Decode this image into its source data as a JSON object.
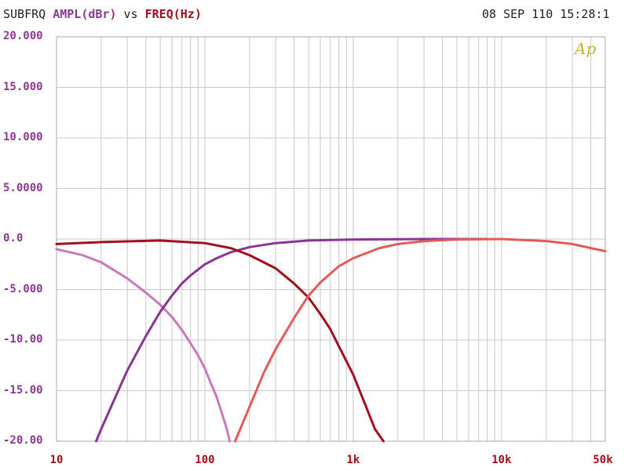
{
  "header": {
    "left_label": "SUBFRQ",
    "ylabel": "AMPL(dBr)",
    "vs": "vs",
    "xlabel": "FREQ(Hz)",
    "timestamp": "08 SEP 110 15:28:1"
  },
  "logo_text": "Ap",
  "colors": {
    "grid": "#c8c8c8",
    "ytick": "#8a3a8e",
    "xtick": "#a0101e",
    "logo": "#c9b23a"
  },
  "chart_data": {
    "type": "line",
    "x_scale": "log",
    "xlim": [
      10,
      50000
    ],
    "ylim": [
      -20,
      20
    ],
    "grid": true,
    "y_ticks": [
      20,
      15,
      10,
      5,
      0,
      -5,
      -10,
      -15,
      -20
    ],
    "y_tick_labels": [
      "20.000",
      "15.000",
      "10.000",
      "5.0000",
      "0.0",
      "-5.000",
      "-10.00",
      "-15.00",
      "-20.00"
    ],
    "x_ticks": [
      10,
      100,
      1000,
      10000,
      50000
    ],
    "x_tick_labels": [
      "10",
      "100",
      "1k",
      "10k",
      "50k"
    ],
    "series": [
      {
        "color": "#c97ab8",
        "x": [
          10,
          15,
          20,
          30,
          40,
          50,
          60,
          70,
          80,
          90,
          100,
          110,
          120,
          130,
          140,
          147
        ],
        "y": [
          -1.0,
          -1.6,
          -2.3,
          -3.9,
          -5.3,
          -6.5,
          -7.7,
          -9.0,
          -10.3,
          -11.5,
          -12.8,
          -14.3,
          -15.6,
          -17.2,
          -18.7,
          -20.0
        ]
      },
      {
        "color": "#8a3594",
        "x": [
          18.5,
          20,
          25,
          30,
          40,
          50,
          60,
          70,
          80,
          100,
          120,
          150,
          200,
          300,
          500,
          1000,
          3000,
          8000
        ],
        "y": [
          -20.0,
          -18.8,
          -15.6,
          -13.0,
          -9.6,
          -7.2,
          -5.6,
          -4.4,
          -3.6,
          -2.5,
          -1.9,
          -1.3,
          -0.8,
          -0.4,
          -0.15,
          -0.05,
          0.0,
          0.0
        ]
      },
      {
        "color": "#a0101e",
        "x": [
          10,
          20,
          50,
          100,
          150,
          200,
          300,
          400,
          500,
          600,
          700,
          800,
          1000,
          1200,
          1400,
          1600
        ],
        "y": [
          -0.5,
          -0.3,
          -0.15,
          -0.4,
          -0.9,
          -1.6,
          -2.9,
          -4.4,
          -5.8,
          -7.4,
          -8.9,
          -10.6,
          -13.4,
          -16.3,
          -18.8,
          -20.0
        ]
      },
      {
        "color": "#e45a5a",
        "x": [
          160,
          200,
          250,
          300,
          400,
          500,
          600,
          800,
          1000,
          1500,
          2000,
          3000,
          5000,
          10000,
          20000,
          30000,
          40000,
          50000
        ],
        "y": [
          -20.0,
          -16.6,
          -13.2,
          -10.9,
          -7.8,
          -5.6,
          -4.3,
          -2.7,
          -1.9,
          -0.9,
          -0.5,
          -0.2,
          -0.05,
          0.0,
          -0.2,
          -0.5,
          -0.9,
          -1.2
        ]
      }
    ]
  }
}
